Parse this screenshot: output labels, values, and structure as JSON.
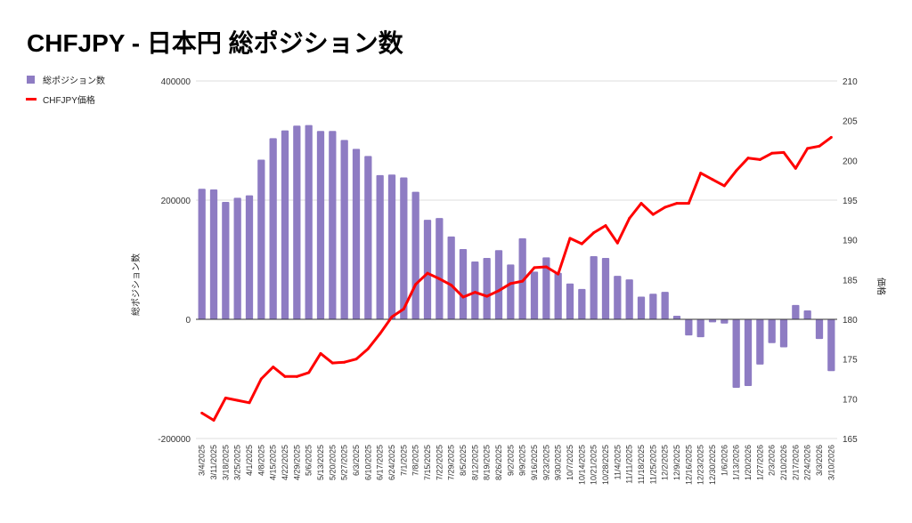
{
  "chart_data": {
    "type": "bar+line",
    "title": "CHFJPY - 日本円 総ポジション数",
    "legend": [
      {
        "name": "総ポジション数",
        "color": "#8e7cc3",
        "kind": "bar"
      },
      {
        "name": "CHFJPY価格",
        "color": "#ff0000",
        "kind": "line"
      }
    ],
    "legend_position": "top-left",
    "ylabel_left": "総ポジション数",
    "ylabel_right": "価格",
    "ylim_left": [
      -200000,
      400000
    ],
    "yticks_left": [
      "400000",
      "200000",
      "0",
      "-200000"
    ],
    "ylim_right": [
      165,
      210
    ],
    "yticks_right": [
      "210",
      "205",
      "200",
      "195",
      "190",
      "185",
      "180",
      "175",
      "170",
      "165"
    ],
    "categories": [
      "3/4/2025",
      "3/11/2025",
      "3/18/2025",
      "3/25/2025",
      "4/1/2025",
      "4/8/2025",
      "4/15/2025",
      "4/22/2025",
      "4/29/2025",
      "5/6/2025",
      "5/13/2025",
      "5/20/2025",
      "5/27/2025",
      "6/3/2025",
      "6/10/2025",
      "6/17/2025",
      "6/24/2025",
      "7/1/2025",
      "7/8/2025",
      "7/15/2025",
      "7/22/2025",
      "7/29/2025",
      "8/5/2025",
      "8/12/2025",
      "8/19/2025",
      "8/26/2025",
      "9/2/2025",
      "9/9/2025",
      "9/16/2025",
      "9/23/2025",
      "9/30/2025",
      "10/7/2025",
      "10/14/2025",
      "10/21/2025",
      "10/28/2025",
      "11/4/2025",
      "11/11/2025",
      "11/18/2025",
      "11/25/2025",
      "12/2/2025",
      "12/9/2025",
      "12/16/2025",
      "12/23/2025",
      "12/30/2025",
      "1/6/2026",
      "1/13/2026",
      "1/20/2026",
      "1/27/2026",
      "2/3/2026",
      "2/10/2026",
      "2/17/2026",
      "2/24/2026",
      "3/3/2026",
      "3/10/2026"
    ],
    "series": [
      {
        "name": "総ポジション数",
        "axis": "left",
        "type": "bar",
        "values": [
          219000,
          218000,
          197000,
          204000,
          208000,
          268000,
          304000,
          317000,
          325000,
          326000,
          316000,
          316000,
          301000,
          286000,
          274000,
          242000,
          243000,
          238000,
          214000,
          167000,
          170000,
          139000,
          118000,
          97000,
          103000,
          116000,
          92000,
          136000,
          80000,
          104000,
          78000,
          60000,
          51000,
          106000,
          103000,
          73000,
          67000,
          38000,
          43000,
          46000,
          6000,
          -27000,
          -30000,
          -5000,
          -7000,
          -115000,
          -112000,
          -76000,
          -40000,
          -47000,
          24000,
          15000,
          -33000,
          -87000
        ]
      },
      {
        "name": "CHFJPY価格",
        "axis": "right",
        "type": "line",
        "values": [
          168.2,
          167.3,
          170.1,
          169.8,
          169.5,
          172.5,
          174.0,
          172.8,
          172.8,
          173.3,
          175.7,
          174.5,
          174.6,
          175.0,
          176.3,
          178.2,
          180.3,
          181.3,
          184.4,
          185.8,
          185.1,
          184.3,
          182.8,
          183.4,
          182.9,
          183.6,
          184.5,
          184.8,
          186.5,
          186.6,
          185.7,
          190.2,
          189.5,
          190.9,
          191.8,
          189.6,
          192.7,
          194.6,
          193.2,
          194.1,
          194.6,
          194.6,
          198.4,
          197.6,
          196.8,
          198.7,
          200.3,
          200.1,
          200.9,
          201.0,
          199.0,
          201.5,
          201.8,
          202.9
        ]
      }
    ],
    "grid": true
  }
}
